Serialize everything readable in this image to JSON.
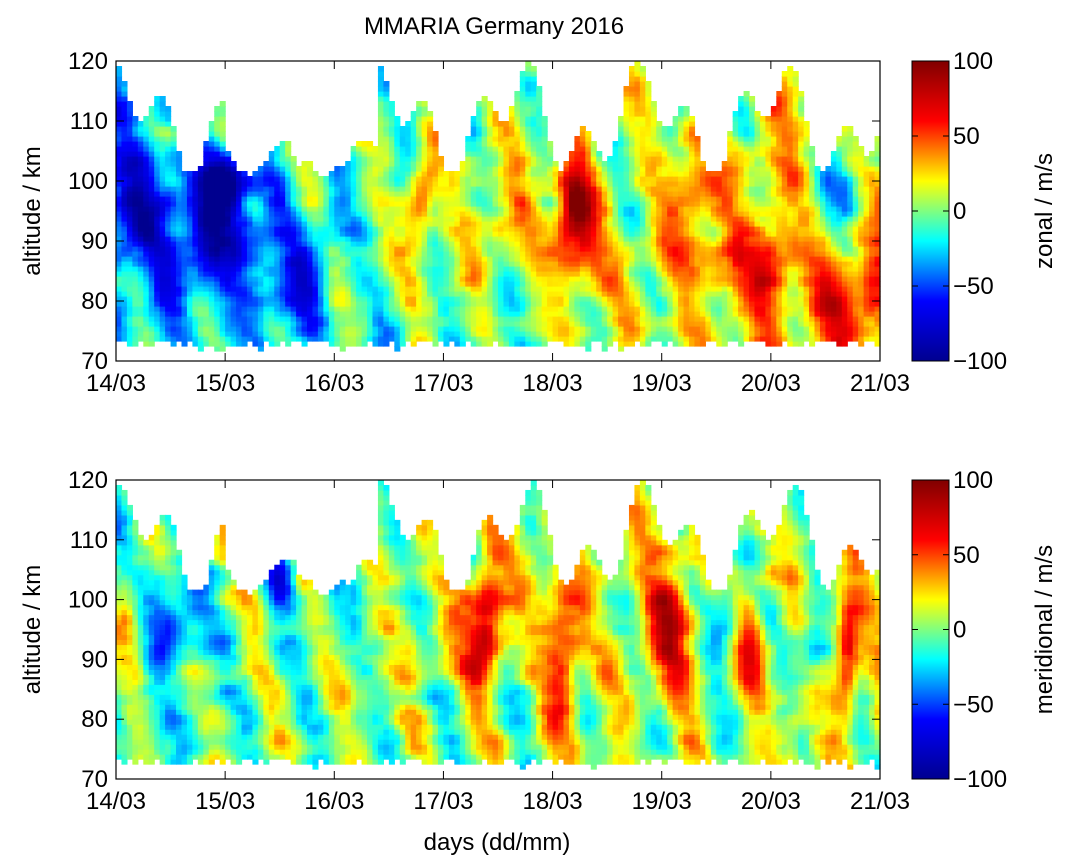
{
  "figure": {
    "title": "MMARIA Germany 2016",
    "xlabel": "days (dd/mm)"
  },
  "colormap": {
    "name": "jet",
    "stops": [
      "#00008f",
      "#0000ff",
      "#00ffff",
      "#ffff00",
      "#ff0000",
      "#800000"
    ]
  },
  "chart_data": [
    {
      "type": "heatmap",
      "xlabel": "",
      "ylabel": "altitude / km",
      "x_ticks": [
        "14/03",
        "15/03",
        "16/03",
        "17/03",
        "18/03",
        "19/03",
        "20/03",
        "21/03"
      ],
      "xlim": [
        "14/03",
        "21/03"
      ],
      "y_ticks": [
        70,
        80,
        90,
        100,
        110,
        120
      ],
      "ylim": [
        70,
        120
      ],
      "grid": false,
      "colorbar": {
        "label": "zonal / m/s",
        "ticks": [
          100,
          50,
          0,
          -50,
          -100
        ],
        "tick_labels": [
          "100",
          "50",
          "0",
          "−50",
          "−100"
        ],
        "range": [
          -100,
          100
        ]
      },
      "blobs": [
        {
          "day": 0.2,
          "alt": 95,
          "value": -50,
          "width_days": 0.3,
          "height_km": 12
        },
        {
          "day": 0.9,
          "alt": 92,
          "value": -60,
          "width_days": 0.4,
          "height_km": 10
        },
        {
          "day": 1.0,
          "alt": 100,
          "value": -65,
          "width_days": 0.25,
          "height_km": 5
        },
        {
          "day": 1.6,
          "alt": 84,
          "value": -45,
          "width_days": 0.4,
          "height_km": 8
        },
        {
          "day": 2.8,
          "alt": 98,
          "value": 50,
          "width_days": 0.15,
          "height_km": 8
        },
        {
          "day": 3.5,
          "alt": 96,
          "value": 30,
          "width_days": 0.25,
          "height_km": 10
        },
        {
          "day": 4.2,
          "alt": 92,
          "value": 70,
          "width_days": 0.2,
          "height_km": 10
        },
        {
          "day": 4.2,
          "alt": 98,
          "value": 45,
          "width_days": 0.15,
          "height_km": 6
        },
        {
          "day": 5.3,
          "alt": 97,
          "value": 40,
          "width_days": 0.25,
          "height_km": 10
        },
        {
          "day": 5.9,
          "alt": 84,
          "value": 40,
          "width_days": 0.35,
          "height_km": 8
        },
        {
          "day": 6.7,
          "alt": 80,
          "value": 40,
          "width_days": 0.3,
          "height_km": 10
        },
        {
          "day": 6.7,
          "alt": 100,
          "value": -55,
          "width_days": 0.25,
          "height_km": 10
        }
      ]
    },
    {
      "type": "heatmap",
      "xlabel": "days (dd/mm)",
      "ylabel": "altitude / km",
      "x_ticks": [
        "14/03",
        "15/03",
        "16/03",
        "17/03",
        "18/03",
        "19/03",
        "20/03",
        "21/03"
      ],
      "xlim": [
        "14/03",
        "21/03"
      ],
      "y_ticks": [
        70,
        80,
        90,
        100,
        110,
        120
      ],
      "ylim": [
        70,
        120
      ],
      "grid": false,
      "colorbar": {
        "label": "meridional / m/s",
        "ticks": [
          100,
          50,
          0,
          -50,
          -100
        ],
        "tick_labels": [
          "100",
          "50",
          "0",
          "−50",
          "−100"
        ],
        "range": [
          -100,
          100
        ]
      },
      "blobs": [
        {
          "day": 0.1,
          "alt": 98,
          "value": 40,
          "width_days": 0.15,
          "height_km": 8
        },
        {
          "day": 0.5,
          "alt": 96,
          "value": -40,
          "width_days": 0.3,
          "height_km": 10
        },
        {
          "day": 1.5,
          "alt": 104,
          "value": -60,
          "width_days": 0.15,
          "height_km": 6
        },
        {
          "day": 3.4,
          "alt": 99,
          "value": 60,
          "width_days": 0.15,
          "height_km": 10
        },
        {
          "day": 3.3,
          "alt": 92,
          "value": 40,
          "width_days": 0.2,
          "height_km": 8
        },
        {
          "day": 4.1,
          "alt": 96,
          "value": 50,
          "width_days": 0.2,
          "height_km": 12
        },
        {
          "day": 4.1,
          "alt": 86,
          "value": 40,
          "width_days": 0.15,
          "height_km": 8
        },
        {
          "day": 5.1,
          "alt": 95,
          "value": 55,
          "width_days": 0.25,
          "height_km": 12
        },
        {
          "day": 5.6,
          "alt": 96,
          "value": -45,
          "width_days": 0.2,
          "height_km": 10
        },
        {
          "day": 5.8,
          "alt": 94,
          "value": 60,
          "width_days": 0.15,
          "height_km": 8
        },
        {
          "day": 6.4,
          "alt": 94,
          "value": -50,
          "width_days": 0.15,
          "height_km": 8
        },
        {
          "day": 6.7,
          "alt": 90,
          "value": 55,
          "width_days": 0.1,
          "height_km": 10
        }
      ]
    }
  ]
}
